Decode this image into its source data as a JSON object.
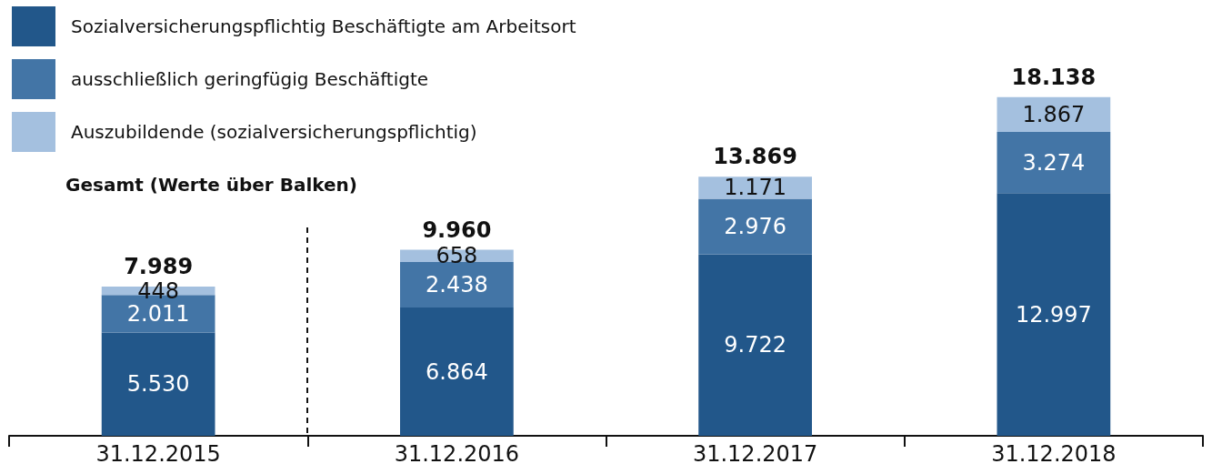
{
  "chart_data": {
    "type": "bar",
    "stacked": true,
    "categories": [
      "31.12.2015",
      "31.12.2016",
      "31.12.2017",
      "31.12.2018"
    ],
    "series": [
      {
        "name": "Sozialversicherungspflichtig Beschäftigte am Arbeitsort",
        "color": "#22578a",
        "values": [
          5530,
          6864,
          9722,
          12997
        ],
        "value_labels": [
          "5.530",
          "6.864",
          "9.722",
          "12.997"
        ]
      },
      {
        "name": "ausschließlich geringfügig Beschäftigte",
        "color": "#4375a6",
        "values": [
          2011,
          2438,
          2976,
          3274
        ],
        "value_labels": [
          "2.011",
          "2.438",
          "2.976",
          "3.274"
        ]
      },
      {
        "name": "Auszubildende (sozialversicherungspflichtig)",
        "color": "#a4c0df",
        "values": [
          448,
          658,
          1171,
          1867
        ],
        "value_labels": [
          "448",
          "658",
          "1.171",
          "1.867"
        ]
      }
    ],
    "totals": [
      "7.989",
      "9.960",
      "13.869",
      "18.138"
    ],
    "annotations": [
      "Gesamt (Werte über Balken)"
    ],
    "legend": "top left"
  }
}
